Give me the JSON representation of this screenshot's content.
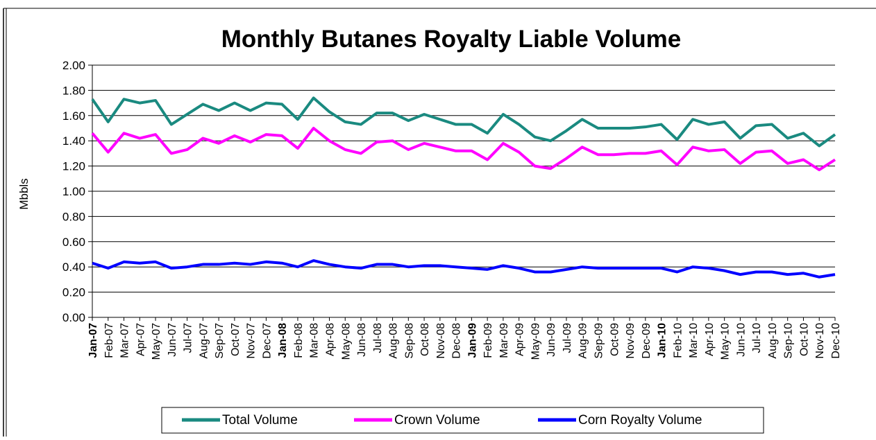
{
  "chart_data": {
    "type": "line",
    "title": "Monthly Butanes Royalty Liable Volume",
    "y_label": "Mbbls",
    "categories": [
      "Jan-07",
      "Feb-07",
      "Mar-07",
      "Apr-07",
      "May-07",
      "Jun-07",
      "Jul-07",
      "Aug-07",
      "Sep-07",
      "Oct-07",
      "Nov-07",
      "Dec-07",
      "Jan-08",
      "Feb-08",
      "Mar-08",
      "Apr-08",
      "May-08",
      "Jun-08",
      "Jul-08",
      "Aug-08",
      "Sep-08",
      "Oct-08",
      "Nov-08",
      "Dec-08",
      "Jan-09",
      "Feb-09",
      "Mar-09",
      "Apr-09",
      "May-09",
      "Jun-09",
      "Jul-09",
      "Aug-09",
      "Sep-09",
      "Oct-09",
      "Nov-09",
      "Dec-09",
      "Jan-10",
      "Feb-10",
      "Mar-10",
      "Apr-10",
      "May-10",
      "Jun-10",
      "Jul-10",
      "Aug-10",
      "Sep-10",
      "Oct-10",
      "Nov-10",
      "Dec-10"
    ],
    "series": [
      {
        "name": "Total Volume",
        "color": "#1a8a80",
        "values": [
          1.73,
          1.55,
          1.73,
          1.7,
          1.72,
          1.53,
          1.61,
          1.69,
          1.64,
          1.7,
          1.64,
          1.7,
          1.69,
          1.57,
          1.74,
          1.63,
          1.55,
          1.53,
          1.62,
          1.62,
          1.56,
          1.61,
          1.57,
          1.53,
          1.53,
          1.46,
          1.61,
          1.53,
          1.43,
          1.4,
          1.48,
          1.57,
          1.5,
          1.5,
          1.5,
          1.51,
          1.53,
          1.41,
          1.57,
          1.53,
          1.55,
          1.42,
          1.52,
          1.53,
          1.42,
          1.46,
          1.36,
          1.45
        ]
      },
      {
        "name": "Crown Volume",
        "color": "#ff00ff",
        "values": [
          1.46,
          1.31,
          1.46,
          1.42,
          1.45,
          1.3,
          1.33,
          1.42,
          1.38,
          1.44,
          1.39,
          1.45,
          1.44,
          1.34,
          1.5,
          1.4,
          1.33,
          1.3,
          1.39,
          1.4,
          1.33,
          1.38,
          1.35,
          1.32,
          1.32,
          1.25,
          1.38,
          1.31,
          1.2,
          1.18,
          1.26,
          1.35,
          1.29,
          1.29,
          1.3,
          1.3,
          1.32,
          1.21,
          1.35,
          1.32,
          1.33,
          1.22,
          1.31,
          1.32,
          1.22,
          1.25,
          1.17,
          1.25
        ]
      },
      {
        "name": "Corn Royalty Volume",
        "color": "#0000ff",
        "values": [
          0.43,
          0.39,
          0.44,
          0.43,
          0.44,
          0.39,
          0.4,
          0.42,
          0.42,
          0.43,
          0.42,
          0.44,
          0.43,
          0.4,
          0.45,
          0.42,
          0.4,
          0.39,
          0.42,
          0.42,
          0.4,
          0.41,
          0.41,
          0.4,
          0.39,
          0.38,
          0.41,
          0.39,
          0.36,
          0.36,
          0.38,
          0.4,
          0.39,
          0.39,
          0.39,
          0.39,
          0.39,
          0.36,
          0.4,
          0.39,
          0.37,
          0.34,
          0.36,
          0.36,
          0.34,
          0.35,
          0.32,
          0.34
        ]
      }
    ],
    "ylim": [
      0,
      2
    ],
    "yticks": [
      {
        "value": 0,
        "label": "0.00"
      },
      {
        "value": 0.2,
        "label": "0.20"
      },
      {
        "value": 0.4,
        "label": "0.40"
      },
      {
        "value": 0.6,
        "label": "0.60"
      },
      {
        "value": 0.8,
        "label": "0.80"
      },
      {
        "value": 1,
        "label": "1.00"
      },
      {
        "value": 1.2,
        "label": "1.20"
      },
      {
        "value": 1.4,
        "label": "1.40"
      },
      {
        "value": 1.6,
        "label": "1.60"
      },
      {
        "value": 1.8,
        "label": "1.80"
      },
      {
        "value": 2,
        "label": "2.00"
      }
    ],
    "grid": true,
    "legend": "bottom"
  }
}
